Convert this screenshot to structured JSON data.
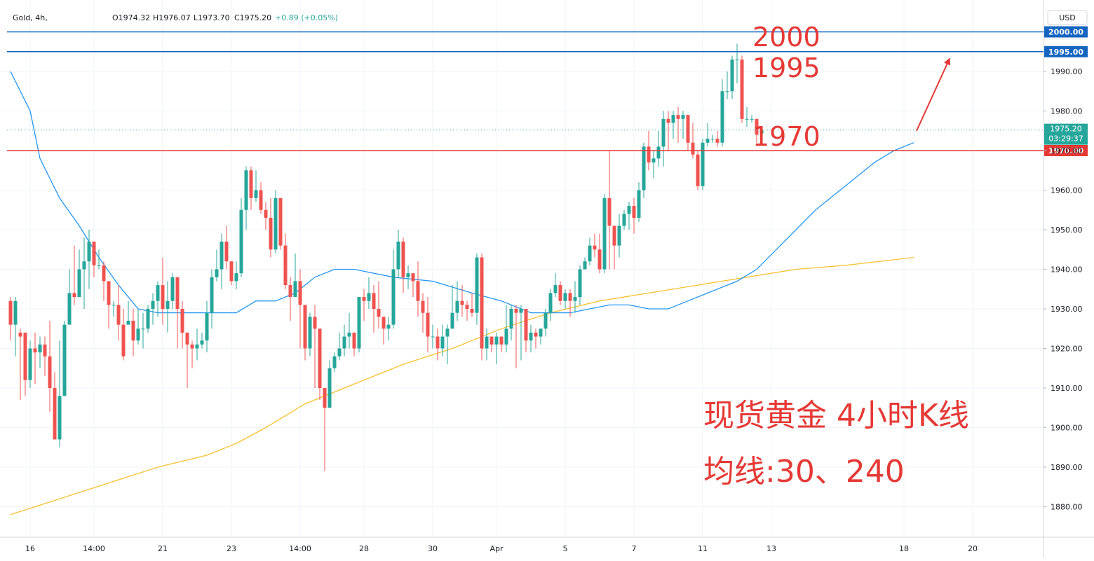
{
  "header": {
    "symbol": "Gold, 4h,",
    "open": "O1974.32",
    "high": "H1976.07",
    "low": "L1973.70",
    "close": "C1975.20",
    "change": "+0.89 (+0.05%)",
    "currency": "USD"
  },
  "colors": {
    "up": "#26a69a",
    "down": "#ef5350",
    "ma30": "#2196f3",
    "ma240": "#f9c02e",
    "level_blue": "#1565c0",
    "level_red": "#e53935",
    "annotation": "#e53935"
  },
  "price_badge": {
    "price": "1975.20",
    "countdown": "03:29:37"
  },
  "annotations": {
    "level_2000": "2000",
    "level_1995": "1995",
    "level_1970": "1970",
    "title_line1": "现货黄金 4小时K线",
    "title_line2": "均线:30、240"
  },
  "chart_data": {
    "type": "candlestick",
    "instrument": "Gold",
    "timeframe": "4h",
    "currency": "USD",
    "y_range": [
      1875,
      2007
    ],
    "y_ticks": [
      1880,
      1890,
      1900,
      1910,
      1920,
      1930,
      1940,
      1950,
      1960,
      1970,
      1980,
      1990
    ],
    "x_labels": [
      "16",
      "14:00",
      "21",
      "23",
      "14:00",
      "28",
      "30",
      "Apr",
      "5",
      "7",
      "11",
      "13",
      "18",
      "20"
    ],
    "x_label_index": [
      4,
      17,
      31,
      45,
      59,
      72,
      86,
      99,
      113,
      127,
      141,
      155,
      182,
      196
    ],
    "horizontal_levels": [
      {
        "value": 2000,
        "label": "2000.00",
        "color": "blue"
      },
      {
        "value": 1995,
        "label": "1995.00",
        "color": "blue"
      },
      {
        "value": 1970,
        "label": "1970.00",
        "color": "red"
      }
    ],
    "current_price": 1975.2,
    "candles": [
      [
        1932,
        1926,
        1933,
        1922
      ],
      [
        1926,
        1932,
        1933,
        1918
      ],
      [
        1924,
        1923,
        1925,
        1907
      ],
      [
        1924,
        1912,
        1924,
        1908
      ],
      [
        1912,
        1920,
        1922,
        1910
      ],
      [
        1920,
        1919,
        1924,
        1911
      ],
      [
        1919,
        1921,
        1923,
        1915
      ],
      [
        1921,
        1918,
        1923,
        1913
      ],
      [
        1918,
        1910,
        1927,
        1904
      ],
      [
        1910,
        1897,
        1914,
        1905
      ],
      [
        1897,
        1908,
        1922,
        1895
      ],
      [
        1908,
        1926,
        1927,
        1912
      ],
      [
        1926,
        1934,
        1940,
        1931
      ],
      [
        1934,
        1933,
        1946,
        1931
      ],
      [
        1933,
        1940,
        1945,
        1938
      ],
      [
        1940,
        1942,
        1948,
        1930
      ],
      [
        1942,
        1947,
        1950,
        1935
      ],
      [
        1947,
        1941,
        1947,
        1938
      ],
      [
        1941,
        1941,
        1945,
        1940
      ],
      [
        1941,
        1937,
        1942,
        1932
      ],
      [
        1937,
        1931,
        1937,
        1925
      ],
      [
        1931,
        1931,
        1932,
        1928
      ],
      [
        1931,
        1926,
        1936,
        1922
      ],
      [
        1926,
        1918,
        1930,
        1917
      ],
      [
        1926,
        1927,
        1932,
        1926
      ],
      [
        1927,
        1922,
        1930,
        1918
      ],
      [
        1922,
        1925,
        1930,
        1921
      ],
      [
        1925,
        1925,
        1929,
        1920
      ],
      [
        1925,
        1930,
        1931,
        1924
      ],
      [
        1930,
        1932,
        1934,
        1926
      ],
      [
        1932,
        1936,
        1937,
        1928
      ],
      [
        1936,
        1930,
        1943,
        1926
      ],
      [
        1930,
        1932,
        1937,
        1924
      ],
      [
        1932,
        1938,
        1939,
        1930
      ],
      [
        1938,
        1930,
        1938,
        1920
      ],
      [
        1930,
        1924,
        1932,
        1920
      ],
      [
        1924,
        1921,
        1924,
        1910
      ],
      [
        1921,
        1920,
        1922,
        1915
      ],
      [
        1920,
        1921,
        1925,
        1917
      ],
      [
        1921,
        1922,
        1924,
        1920
      ],
      [
        1922,
        1929,
        1932,
        1919
      ],
      [
        1929,
        1938,
        1940,
        1925
      ],
      [
        1938,
        1940,
        1945,
        1937
      ],
      [
        1940,
        1947,
        1949,
        1935
      ],
      [
        1947,
        1942,
        1951,
        1940
      ],
      [
        1942,
        1937,
        1942,
        1936
      ],
      [
        1937,
        1939,
        1942,
        1935
      ],
      [
        1939,
        1955,
        1958,
        1938
      ],
      [
        1955,
        1965,
        1966,
        1950
      ],
      [
        1965,
        1958,
        1966,
        1955
      ],
      [
        1958,
        1960,
        1965,
        1957
      ],
      [
        1960,
        1955,
        1962,
        1954
      ],
      [
        1955,
        1953,
        1957,
        1950
      ],
      [
        1953,
        1945,
        1958,
        1943
      ],
      [
        1945,
        1958,
        1960,
        1944
      ],
      [
        1958,
        1946,
        1958,
        1945
      ],
      [
        1946,
        1936,
        1949,
        1935
      ],
      [
        1936,
        1933,
        1938,
        1927
      ],
      [
        1933,
        1937,
        1944,
        1933
      ],
      [
        1937,
        1931,
        1940,
        1920
      ],
      [
        1931,
        1920,
        1931,
        1917
      ],
      [
        1920,
        1928,
        1929,
        1918
      ],
      [
        1928,
        1925,
        1931,
        1910
      ],
      [
        1925,
        1910,
        1925,
        1907
      ],
      [
        1910,
        1905,
        1910,
        1889
      ],
      [
        1905,
        1915,
        1917,
        1905
      ],
      [
        1915,
        1918,
        1919,
        1914
      ],
      [
        1918,
        1920,
        1924,
        1917
      ],
      [
        1920,
        1923,
        1926,
        1918
      ],
      [
        1923,
        1924,
        1929,
        1920
      ],
      [
        1924,
        1920,
        1924,
        1918
      ],
      [
        1920,
        1933,
        1933,
        1919
      ],
      [
        1933,
        1932,
        1935,
        1927
      ],
      [
        1932,
        1934,
        1938,
        1930
      ],
      [
        1934,
        1930,
        1936,
        1924
      ],
      [
        1930,
        1928,
        1937,
        1925
      ],
      [
        1928,
        1925,
        1926,
        1921
      ],
      [
        1925,
        1926,
        1928,
        1922
      ],
      [
        1926,
        1940,
        1945,
        1925
      ],
      [
        1940,
        1947,
        1950,
        1938
      ],
      [
        1947,
        1938,
        1948,
        1934
      ],
      [
        1938,
        1939,
        1941,
        1935
      ],
      [
        1939,
        1937,
        1938,
        1933
      ],
      [
        1937,
        1932,
        1942,
        1928
      ],
      [
        1932,
        1929,
        1934,
        1924
      ],
      [
        1929,
        1923,
        1933,
        1919
      ],
      [
        1923,
        1923,
        1926,
        1920
      ],
      [
        1923,
        1920,
        1925,
        1917
      ],
      [
        1920,
        1923,
        1926,
        1918
      ],
      [
        1923,
        1925,
        1926,
        1916
      ],
      [
        1925,
        1929,
        1936,
        1925
      ],
      [
        1929,
        1932,
        1937,
        1927
      ],
      [
        1932,
        1931,
        1936,
        1928
      ],
      [
        1931,
        1930,
        1932,
        1927
      ],
      [
        1930,
        1929,
        1934,
        1928
      ],
      [
        1929,
        1943,
        1944,
        1926
      ],
      [
        1943,
        1920,
        1944,
        1917
      ],
      [
        1920,
        1923,
        1925,
        1917
      ],
      [
        1923,
        1921,
        1923,
        1919
      ],
      [
        1921,
        1923,
        1924,
        1916
      ],
      [
        1923,
        1921,
        1923,
        1919
      ],
      [
        1921,
        1925,
        1931,
        1919
      ],
      [
        1925,
        1930,
        1931,
        1922
      ],
      [
        1930,
        1929,
        1931,
        1915
      ],
      [
        1929,
        1930,
        1931,
        1917
      ],
      [
        1930,
        1922,
        1930,
        1919
      ],
      [
        1922,
        1924,
        1926,
        1919
      ],
      [
        1924,
        1923,
        1925,
        1920
      ],
      [
        1923,
        1925,
        1925,
        1921
      ],
      [
        1925,
        1929,
        1930,
        1923
      ],
      [
        1929,
        1934,
        1935,
        1927
      ],
      [
        1934,
        1936,
        1939,
        1933
      ],
      [
        1936,
        1932,
        1937,
        1931
      ],
      [
        1932,
        1934,
        1935,
        1930
      ],
      [
        1934,
        1932,
        1935,
        1928
      ],
      [
        1932,
        1933,
        1937,
        1929
      ],
      [
        1933,
        1940,
        1941,
        1931
      ],
      [
        1940,
        1942,
        1943,
        1940
      ],
      [
        1942,
        1946,
        1948,
        1941
      ],
      [
        1946,
        1945,
        1949,
        1943
      ],
      [
        1945,
        1940,
        1949,
        1939
      ],
      [
        1940,
        1958,
        1959,
        1939
      ],
      [
        1958,
        1951,
        1970,
        1940
      ],
      [
        1951,
        1946,
        1951,
        1940
      ],
      [
        1946,
        1951,
        1954,
        1943
      ],
      [
        1951,
        1954,
        1955,
        1950
      ],
      [
        1954,
        1956,
        1957,
        1950
      ],
      [
        1956,
        1953,
        1958,
        1949
      ],
      [
        1953,
        1960,
        1962,
        1952
      ],
      [
        1960,
        1971,
        1972,
        1958
      ],
      [
        1971,
        1967,
        1975,
        1965
      ],
      [
        1967,
        1968,
        1970,
        1963
      ],
      [
        1968,
        1971,
        1975,
        1966
      ],
      [
        1971,
        1978,
        1980,
        1966
      ],
      [
        1978,
        1977,
        1980,
        1970
      ],
      [
        1977,
        1979,
        1980,
        1973
      ],
      [
        1979,
        1978,
        1981,
        1972
      ],
      [
        1978,
        1979,
        1980,
        1973
      ],
      [
        1979,
        1972,
        1979,
        1970
      ],
      [
        1972,
        1969,
        1977,
        1968
      ],
      [
        1969,
        1961,
        1970,
        1960
      ],
      [
        1961,
        1972,
        1973,
        1960
      ],
      [
        1972,
        1973,
        1977,
        1971
      ],
      [
        1973,
        1973,
        1974,
        1972
      ],
      [
        1973,
        1972,
        1975,
        1971
      ],
      [
        1972,
        1985,
        1988,
        1971
      ],
      [
        1985,
        1985,
        1990,
        1983
      ],
      [
        1985,
        1993,
        1994,
        1983
      ],
      [
        1993,
        1993,
        1997,
        1987
      ],
      [
        1993,
        1978,
        1994,
        1977
      ],
      [
        1978,
        1978,
        1981,
        1976
      ],
      [
        1978,
        1978,
        1979,
        1977
      ],
      [
        1978,
        1974,
        1978,
        1972
      ],
      [
        1974.32,
        1975.2,
        1976.07,
        1973.7
      ]
    ],
    "ma30": [
      [
        0,
        1990
      ],
      [
        4,
        1980
      ],
      [
        6,
        1968
      ],
      [
        10,
        1958
      ],
      [
        14,
        1951
      ],
      [
        18,
        1943
      ],
      [
        22,
        1936
      ],
      [
        26,
        1930
      ],
      [
        30,
        1929
      ],
      [
        36,
        1929
      ],
      [
        40,
        1929
      ],
      [
        46,
        1929
      ],
      [
        50,
        1932
      ],
      [
        54,
        1932
      ],
      [
        58,
        1934
      ],
      [
        62,
        1938
      ],
      [
        66,
        1940
      ],
      [
        70,
        1940
      ],
      [
        78,
        1938
      ],
      [
        86,
        1937
      ],
      [
        94,
        1934
      ],
      [
        100,
        1932
      ],
      [
        106,
        1929
      ],
      [
        110,
        1929
      ],
      [
        114,
        1929
      ],
      [
        118,
        1930
      ],
      [
        122,
        1931
      ],
      [
        126,
        1931
      ],
      [
        130,
        1930
      ],
      [
        134,
        1930
      ],
      [
        138,
        1932
      ],
      [
        142,
        1934
      ],
      [
        148,
        1937
      ],
      [
        152,
        1940
      ],
      [
        156,
        1945
      ],
      [
        160,
        1950
      ],
      [
        164,
        1955
      ],
      [
        168,
        1959
      ],
      [
        172,
        1963
      ],
      [
        176,
        1967
      ],
      [
        180,
        1970
      ],
      [
        184,
        1972
      ]
    ],
    "ma240": [
      [
        0,
        1878
      ],
      [
        10,
        1882
      ],
      [
        20,
        1886
      ],
      [
        30,
        1890
      ],
      [
        40,
        1893
      ],
      [
        46,
        1896
      ],
      [
        52,
        1900
      ],
      [
        60,
        1906
      ],
      [
        70,
        1911
      ],
      [
        80,
        1916
      ],
      [
        90,
        1920
      ],
      [
        100,
        1925
      ],
      [
        110,
        1929
      ],
      [
        120,
        1932
      ],
      [
        130,
        1934
      ],
      [
        140,
        1936
      ],
      [
        150,
        1938
      ],
      [
        160,
        1940
      ],
      [
        170,
        1941
      ],
      [
        184,
        1943
      ]
    ],
    "projection_arrow": {
      "from": [
        184,
        1975
      ],
      "to": [
        188,
        1990
      ]
    }
  }
}
